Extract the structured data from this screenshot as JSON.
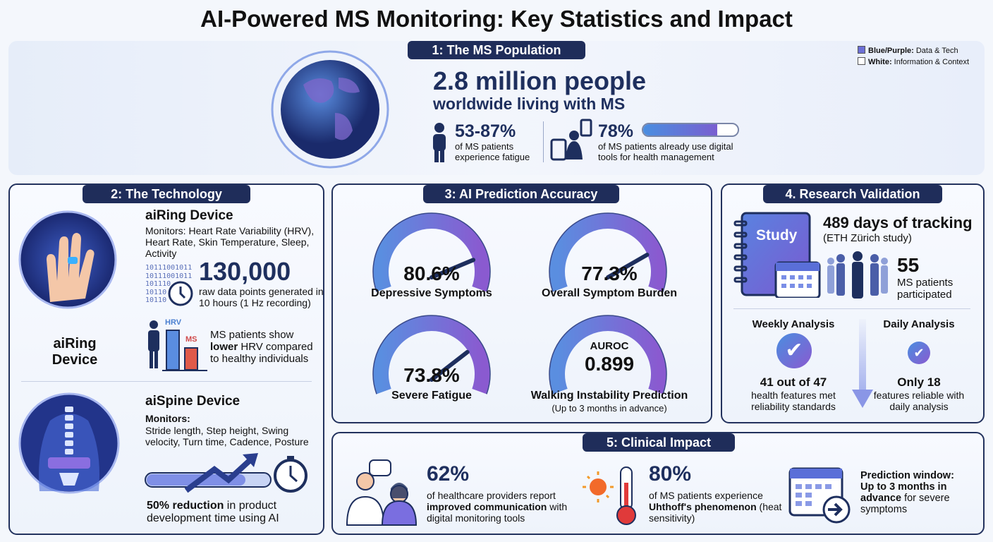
{
  "title": "AI-Powered MS Monitoring: Key Statistics and Impact",
  "legend": [
    {
      "bold": "Blue/Purple:",
      "text": " Data & Tech",
      "color": "#6b6fd6"
    },
    {
      "bold": "White:",
      "text": " Information & Context",
      "color": "#ffffff"
    }
  ],
  "s1": {
    "header": "1: The MS Population",
    "headline": "2.8 million people",
    "sub": "worldwide living with MS",
    "fatigue_pct": "53-87%",
    "fatigue_text": "of MS patients experience fatigue",
    "digital_pct": "78%",
    "digital_text": "of MS patients already use digital tools for health management",
    "digital_fill": 0.78
  },
  "s2": {
    "header": "2: The Technology",
    "ring_label": "aiRing Device",
    "ring_title": "aiRing Device",
    "ring_monitors": "Monitors: Heart Rate Variability (HRV), Heart Rate, Skin Temperature, Sleep, Activity",
    "binary": [
      "10111001011",
      "10111001011",
      "101110",
      "10110",
      "10110"
    ],
    "big_num": "130,000",
    "big_num_text": "raw data points generated in 10 hours (1 Hz recording)",
    "hrv_label": "HRV",
    "ms_label": "MS",
    "hrv_text_pre": "MS patients show ",
    "hrv_text_bold": "lower",
    "hrv_text_post": " HRV compared to healthy individuals",
    "spine_title": "aiSpine Device",
    "spine_monitors_label": "Monitors:",
    "spine_monitors": "Stride length, Step height, Swing velocity, Turn time, Cadence, Posture",
    "reduction_bold": "50% reduction",
    "reduction_text": " in product development time using AI"
  },
  "s3": {
    "header": "3: AI Prediction Accuracy",
    "gauges": [
      {
        "value": "80.6%",
        "label": "Depressive Symptoms",
        "level": 0.806
      },
      {
        "value": "77.3%",
        "label": "Overall Symptom Burden",
        "level": 0.773
      },
      {
        "value": "73.8%",
        "label": "Severe Fatigue",
        "level": 0.738
      },
      {
        "value": "0.899",
        "prefix": "AUROC",
        "label": "Walking Instability Prediction",
        "note": "(Up to 3 months in advance)",
        "level": 0.899
      }
    ]
  },
  "s4": {
    "header": "4. Research Validation",
    "book_label": "Study",
    "days": "489 days of tracking",
    "study": "(ETH Zürich study)",
    "patients": "55",
    "patients_text": "MS patients participated",
    "weekly_title": "Weekly Analysis",
    "weekly_num": "41 out of 47",
    "weekly_text": "health features met reliability standards",
    "daily_title": "Daily Analysis",
    "daily_num": "Only 18",
    "daily_text": "features reliable with daily analysis"
  },
  "s5": {
    "header": "5: Clinical Impact",
    "comm_pct": "62%",
    "comm_pre": "of healthcare providers report ",
    "comm_bold": "improved communication",
    "comm_post": " with digital monitoring tools",
    "heat_pct": "80%",
    "heat_pre": "of MS patients experience ",
    "heat_bold": "Uhthoff's phenomenon",
    "heat_post": " (heat sensitivity)",
    "window_bold": "Prediction window: Up to 3 months in advance",
    "window_post": " for severe symptoms"
  }
}
